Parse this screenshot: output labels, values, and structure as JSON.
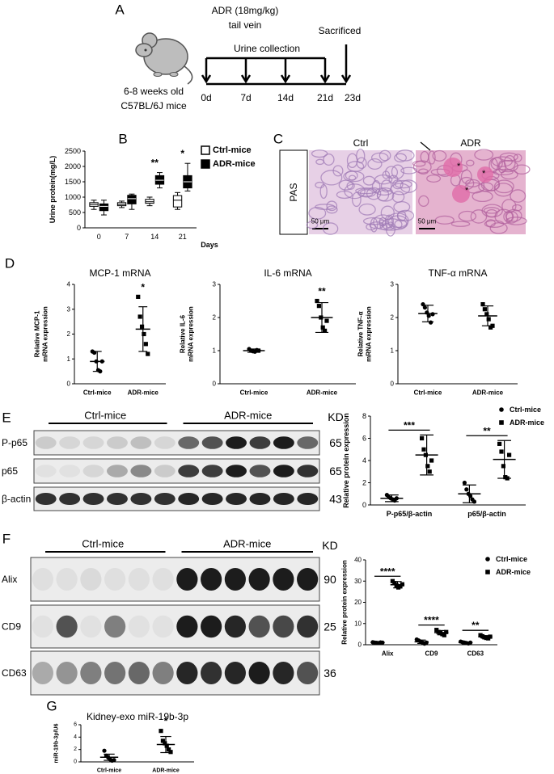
{
  "panel_letters": [
    "A",
    "B",
    "C",
    "D",
    "E",
    "F",
    "G"
  ],
  "timeline": {
    "treatment": "ADR (18mg/kg)",
    "route": "tail vein",
    "collection": "Urine collection",
    "endpoint": "Sacrificed",
    "age": "6-8 weeks old",
    "strain": "C57BL/6J  mice",
    "days": [
      "0d",
      "7d",
      "14d",
      "21d",
      "23d"
    ]
  },
  "histology": {
    "stain": "PAS",
    "groups": [
      "Ctrl",
      "ADR"
    ],
    "scale_bar": "50 μm",
    "lesion_marks": [
      "*",
      "*",
      "*"
    ]
  },
  "blots": [
    {
      "groups": [
        "Ctrl-mice",
        "ADR-mice"
      ],
      "unit": "KD",
      "rows": [
        {
          "label": "P-p65",
          "kd": 65
        },
        {
          "label": "p65",
          "kd": 65
        },
        {
          "label": "β-actin",
          "kd": 43
        }
      ]
    },
    {
      "groups": [
        "Ctrl-mice",
        "ADR-mice"
      ],
      "unit": "KD",
      "rows": [
        {
          "label": "Alix",
          "kd": 90
        },
        {
          "label": "CD9",
          "kd": 25
        },
        {
          "label": "CD63",
          "kd": 36
        }
      ]
    }
  ],
  "chart_data": [
    {
      "type": "box",
      "ylabel": "Urine protein(mg/L)",
      "xlabel": "Days",
      "categories": [
        "0",
        "7",
        "14",
        "21"
      ],
      "ylim": [
        0,
        2500
      ],
      "yticks": [
        0,
        500,
        1000,
        1500,
        2000,
        2500
      ],
      "legend": "top-right",
      "series": [
        {
          "name": "Ctrl-mice",
          "color": "#ffffff",
          "values": [
            {
              "min": 600,
              "q1": 700,
              "median": 760,
              "q3": 820,
              "max": 900
            },
            {
              "min": 660,
              "q1": 720,
              "median": 760,
              "q3": 820,
              "max": 870
            },
            {
              "min": 720,
              "q1": 800,
              "median": 850,
              "q3": 930,
              "max": 1000
            },
            {
              "min": 600,
              "q1": 680,
              "median": 900,
              "q3": 1050,
              "max": 1150
            }
          ]
        },
        {
          "name": "ADR-mice",
          "color": "#000000",
          "values": [
            {
              "min": 420,
              "q1": 560,
              "median": 700,
              "q3": 780,
              "max": 900
            },
            {
              "min": 600,
              "q1": 780,
              "median": 950,
              "q3": 1060,
              "max": 1100
            },
            {
              "min": 1300,
              "q1": 1420,
              "median": 1550,
              "q3": 1700,
              "max": 1800
            },
            {
              "min": 1200,
              "q1": 1300,
              "median": 1500,
              "q3": 1700,
              "max": 2100
            }
          ]
        }
      ],
      "significance": [
        null,
        null,
        "**",
        "*"
      ]
    },
    {
      "type": "dot",
      "title": "MCP-1 mRNA",
      "ylabel": [
        "Relative MCP-1",
        "mRNA expression"
      ],
      "categories": [
        "Ctrl-mice",
        "ADR-mice"
      ],
      "markers": [
        "circle",
        "square"
      ],
      "values": [
        [
          1.3,
          1.25,
          0.9,
          0.55,
          0.5,
          0.9
        ],
        [
          3.5,
          2.7,
          2.3,
          2.0,
          1.6,
          1.2
        ]
      ],
      "mean": [
        0.9,
        2.2
      ],
      "sd": [
        0.4,
        0.9
      ],
      "ylim": [
        0,
        4
      ],
      "yticks": [
        0,
        1,
        2,
        3,
        4
      ],
      "significance": [
        null,
        "*"
      ]
    },
    {
      "type": "dot",
      "title": "IL-6 mRNA",
      "ylabel": [
        "Relative IL-6",
        "mRNA expression"
      ],
      "categories": [
        "Ctrl-mice",
        "ADR-mice"
      ],
      "markers": [
        "circle",
        "square"
      ],
      "values": [
        [
          1.05,
          1.0,
          0.98,
          0.97,
          1.02,
          1.0
        ],
        [
          2.5,
          2.35,
          2.0,
          1.7,
          1.6,
          1.9
        ]
      ],
      "mean": [
        1.0,
        2.0
      ],
      "sd": [
        0.05,
        0.45
      ],
      "ylim": [
        0,
        3
      ],
      "yticks": [
        0,
        1,
        2,
        3
      ],
      "significance": [
        null,
        "**"
      ]
    },
    {
      "type": "dot",
      "title": "TNF-α mRNA",
      "ylabel": [
        "Relative TNF-α",
        "mRNA expression"
      ],
      "categories": [
        "Ctrl-mice",
        "ADR-mice"
      ],
      "markers": [
        "circle",
        "square"
      ],
      "values": [
        [
          2.4,
          2.3,
          2.15,
          2.05,
          1.85,
          2.1
        ],
        [
          2.4,
          2.25,
          2.1,
          1.95,
          1.7,
          1.75
        ]
      ],
      "mean": [
        2.12,
        2.05
      ],
      "sd": [
        0.25,
        0.3
      ],
      "ylim": [
        0,
        3
      ],
      "yticks": [
        0,
        1,
        2,
        3
      ],
      "significance": [
        null,
        null
      ]
    },
    {
      "type": "dot",
      "ylabel": "Relative protein expression",
      "categories": [
        "P-p65/β-actin",
        "p65/β-actin"
      ],
      "ylim": [
        0,
        8
      ],
      "yticks": [
        0,
        2,
        4,
        6,
        8
      ],
      "legend": "top-right",
      "significance_bar": true,
      "series": [
        {
          "name": "Ctrl-mice",
          "marker": "circle",
          "values": [
            [
              0.9,
              0.7,
              0.6,
              0.5,
              0.4,
              0.6
            ],
            [
              2.0,
              1.4,
              1.0,
              0.8,
              0.5,
              0.3
            ]
          ],
          "mean": [
            0.6,
            1.0
          ],
          "sd": [
            0.3,
            0.8
          ]
        },
        {
          "name": "ADR-mice",
          "marker": "square",
          "values": [
            [
              6.0,
              5.0,
              4.5,
              3.5,
              3.0,
              4.0
            ],
            [
              5.5,
              4.8,
              3.5,
              2.5,
              2.4,
              4.5
            ]
          ],
          "mean": [
            4.5,
            4.1
          ],
          "sd": [
            1.8,
            1.7
          ]
        }
      ],
      "significance": [
        "***",
        "**"
      ]
    },
    {
      "type": "dot",
      "ylabel": "Relative protein expression",
      "categories": [
        "Alix",
        "CD9",
        "CD63"
      ],
      "ylim": [
        0,
        40
      ],
      "yticks": [
        0,
        10,
        20,
        30,
        40
      ],
      "legend": "top-right",
      "significance_bar": true,
      "series": [
        {
          "name": "Ctrl-mice",
          "marker": "circle",
          "values": [
            [
              1.2,
              1.0,
              0.9,
              0.8,
              1.1,
              1.0
            ],
            [
              2.5,
              2.0,
              1.5,
              1.0,
              0.5,
              1.0
            ],
            [
              1.5,
              1.2,
              1.0,
              0.8,
              0.6,
              1.0
            ]
          ],
          "mean": [
            1.0,
            1.4,
            1.0
          ],
          "sd": [
            0.3,
            0.8,
            0.3
          ]
        },
        {
          "name": "ADR-mice",
          "marker": "square",
          "values": [
            [
              30,
              29,
              28,
              27,
              27.5,
              28.5
            ],
            [
              7,
              6,
              5.5,
              5,
              4.5,
              6
            ],
            [
              4.5,
              4,
              3.5,
              3.2,
              3,
              3.8
            ]
          ],
          "mean": [
            28.3,
            5.7,
            3.7
          ],
          "sd": [
            1.5,
            1.0,
            0.6
          ]
        }
      ],
      "significance": [
        "****",
        "****",
        "**"
      ]
    },
    {
      "type": "dot",
      "title": "Kidney-exo miR-19b-3p",
      "ylabel": "miR-19b-3p/U6",
      "categories": [
        "Ctrl-mice",
        "ADR-mice"
      ],
      "markers": [
        "circle",
        "square"
      ],
      "values": [
        [
          1.8,
          1.0,
          0.7,
          0.4,
          0.2,
          0.3
        ],
        [
          5.0,
          3.4,
          3.0,
          2.6,
          2.0,
          1.6
        ]
      ],
      "mean": [
        0.75,
        2.8
      ],
      "sd": [
        0.5,
        1.3
      ],
      "ylim": [
        0,
        6
      ],
      "yticks": [
        0,
        2,
        4,
        6
      ],
      "significance": [
        null,
        "*"
      ]
    }
  ]
}
